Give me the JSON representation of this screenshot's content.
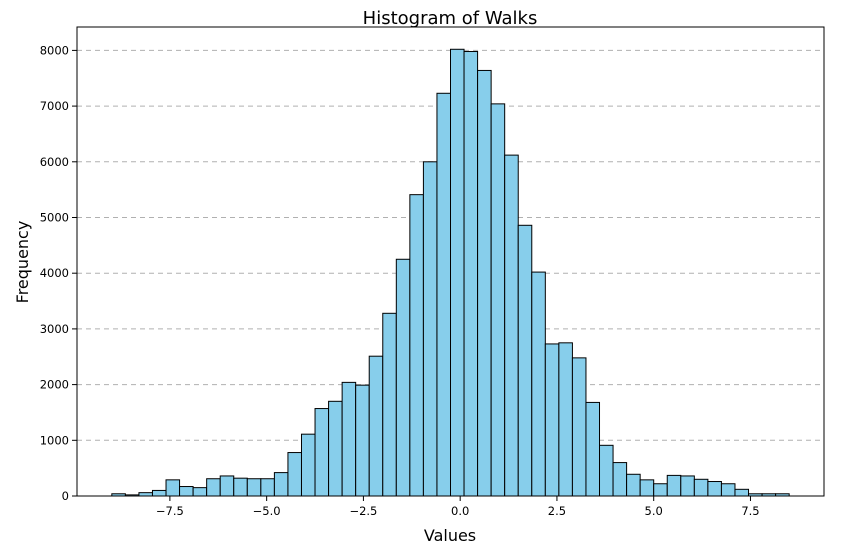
{
  "chart_data": {
    "type": "bar",
    "title": "Histogram of Walks",
    "xlabel": "Values",
    "ylabel": "Frequency",
    "bar_color": "#87ceeb",
    "edge_color": "#000000",
    "grid": {
      "y": true,
      "x": false,
      "style": "dashed"
    },
    "xlim": [
      -9.9,
      9.4
    ],
    "ylim": [
      0,
      8420
    ],
    "x_ticks": [
      -7.5,
      -5.0,
      -2.5,
      0.0,
      2.5,
      5.0,
      7.5
    ],
    "x_tick_labels": [
      "−7.5",
      "−5.0",
      "−2.5",
      "0.0",
      "2.5",
      "5.0",
      "7.5"
    ],
    "y_ticks": [
      0,
      1000,
      2000,
      3000,
      4000,
      5000,
      6000,
      7000,
      8000
    ],
    "y_tick_labels": [
      "0",
      "1000",
      "2000",
      "3000",
      "4000",
      "5000",
      "6000",
      "7000",
      "8000"
    ],
    "bin_start": -9.0,
    "bin_width": 0.35,
    "values": [
      40,
      20,
      60,
      100,
      290,
      170,
      150,
      310,
      360,
      320,
      310,
      310,
      420,
      780,
      1110,
      1570,
      1700,
      2040,
      1990,
      2510,
      3280,
      4250,
      5410,
      6000,
      7230,
      8020,
      7980,
      7640,
      7040,
      6120,
      4860,
      4020,
      2730,
      2750,
      2480,
      1680,
      910,
      600,
      390,
      290,
      220,
      370,
      360,
      300,
      260,
      220,
      120,
      40,
      40,
      40
    ]
  }
}
